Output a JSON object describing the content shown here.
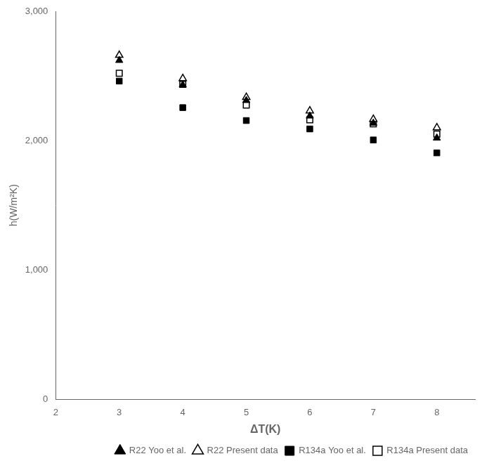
{
  "chart_data": {
    "type": "scatter",
    "xlabel": "ΔT(K)",
    "ylabel": "h(W/m²K)",
    "xlim": [
      2,
      8.6
    ],
    "ylim": [
      0,
      3000
    ],
    "xticks": [
      2,
      3,
      4,
      5,
      6,
      7,
      8
    ],
    "yticks": [
      0,
      1000,
      2000,
      3000
    ],
    "grid": false,
    "legend": "lower right",
    "series": [
      {
        "name": "R22 Yoo et al.",
        "color": "#000000",
        "marker": "triangle",
        "x": [
          3,
          4,
          5,
          6,
          7,
          8
        ],
        "values": [
          2620,
          2430,
          2310,
          2190,
          2135,
          2020
        ]
      },
      {
        "name": "R22 Present data",
        "color": "#000000",
        "marker": "triangle-open",
        "x": [
          3,
          4,
          5,
          6,
          7,
          8
        ],
        "values": [
          2660,
          2480,
          2335,
          2230,
          2165,
          2100
        ]
      },
      {
        "name": "R134a Yoo et al.",
        "color": "#000000",
        "marker": "square",
        "x": [
          3,
          4,
          5,
          6,
          7,
          8
        ],
        "values": [
          2460,
          2255,
          2155,
          2090,
          2005,
          1905
        ]
      },
      {
        "name": "R134a Present data",
        "color": "#000000",
        "marker": "square-open",
        "x": [
          3,
          4,
          5,
          6,
          7,
          8
        ],
        "values": [
          2520,
          2435,
          2275,
          2160,
          2130,
          2050
        ]
      }
    ]
  }
}
